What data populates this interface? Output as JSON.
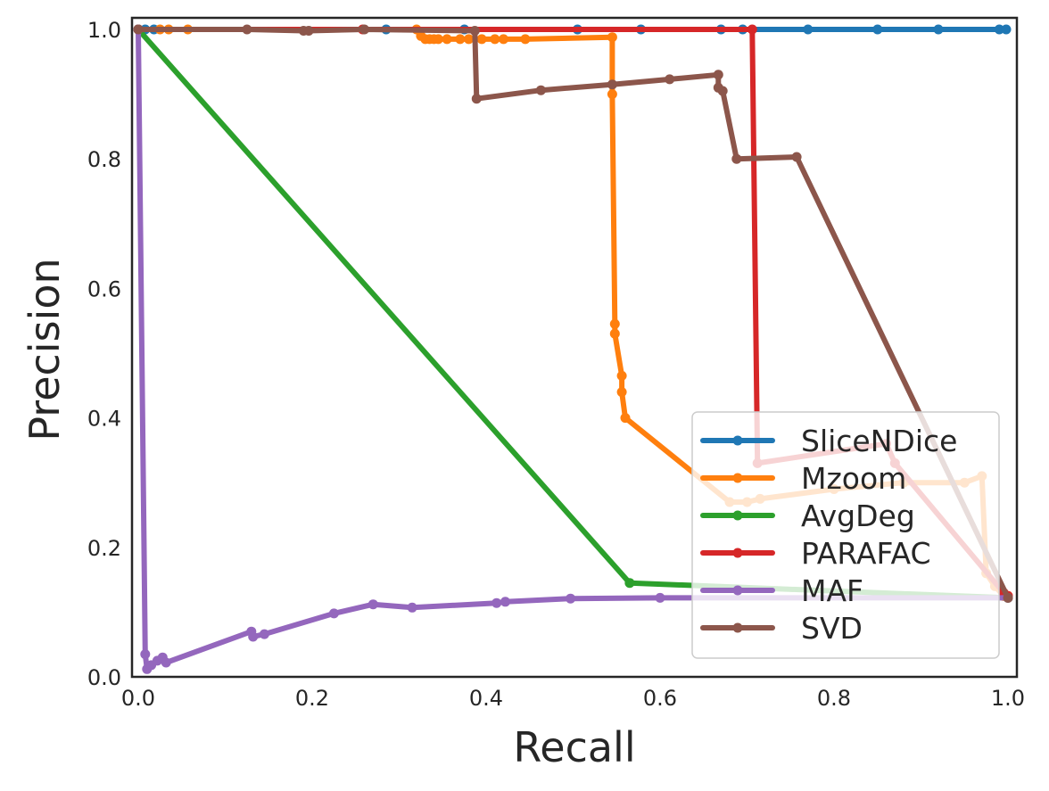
{
  "chart_data": {
    "type": "line",
    "title": "",
    "xlabel": "Recall",
    "ylabel": "Precision",
    "xlim": [
      0.0,
      1.0
    ],
    "ylim": [
      0.0,
      1.0
    ],
    "xticks": [
      "0.0",
      "0.2",
      "0.4",
      "0.6",
      "0.8",
      "1.0"
    ],
    "yticks": [
      "0.0",
      "0.2",
      "0.4",
      "0.6",
      "0.8",
      "1.0"
    ],
    "grid": false,
    "legend_position": "lower-right",
    "series": [
      {
        "name": "SliceNDice",
        "color": "#1f77b4",
        "points": [
          [
            0.0,
            1.0
          ],
          [
            0.008,
            1.0
          ],
          [
            0.018,
            1.0
          ],
          [
            0.285,
            1.0
          ],
          [
            0.375,
            1.0
          ],
          [
            0.505,
            1.0
          ],
          [
            0.578,
            1.0
          ],
          [
            0.67,
            1.0
          ],
          [
            0.695,
            1.0
          ],
          [
            0.77,
            1.0
          ],
          [
            0.85,
            1.0
          ],
          [
            0.92,
            1.0
          ],
          [
            0.99,
            1.0
          ],
          [
            0.998,
            1.0
          ]
        ]
      },
      {
        "name": "Mzoom",
        "color": "#ff7f0e",
        "points": [
          [
            0.0,
            1.0
          ],
          [
            0.025,
            1.0
          ],
          [
            0.035,
            1.0
          ],
          [
            0.057,
            1.0
          ],
          [
            0.32,
            1.0
          ],
          [
            0.325,
            0.99
          ],
          [
            0.33,
            0.985
          ],
          [
            0.335,
            0.985
          ],
          [
            0.34,
            0.985
          ],
          [
            0.345,
            0.985
          ],
          [
            0.355,
            0.985
          ],
          [
            0.37,
            0.985
          ],
          [
            0.38,
            0.985
          ],
          [
            0.395,
            0.985
          ],
          [
            0.41,
            0.985
          ],
          [
            0.42,
            0.985
          ],
          [
            0.445,
            0.985
          ],
          [
            0.545,
            0.988
          ],
          [
            0.545,
            0.9
          ],
          [
            0.548,
            0.545
          ],
          [
            0.548,
            0.53
          ],
          [
            0.556,
            0.465
          ],
          [
            0.556,
            0.44
          ],
          [
            0.56,
            0.4
          ],
          [
            0.68,
            0.27
          ],
          [
            0.7,
            0.27
          ],
          [
            0.715,
            0.275
          ],
          [
            0.8,
            0.29
          ],
          [
            0.88,
            0.3
          ],
          [
            0.95,
            0.3
          ],
          [
            0.97,
            0.31
          ],
          [
            0.975,
            0.16
          ],
          [
            0.985,
            0.14
          ],
          [
            0.995,
            0.125
          ],
          [
            1.0,
            0.125
          ]
        ]
      },
      {
        "name": "AvgDeg",
        "color": "#2ca02c",
        "points": [
          [
            0.0,
            1.0
          ],
          [
            0.565,
            0.145
          ],
          [
            1.0,
            0.122
          ]
        ]
      },
      {
        "name": "PARAFAC",
        "color": "#d62728",
        "points": [
          [
            0.0,
            1.0
          ],
          [
            0.258,
            1.0
          ],
          [
            0.706,
            1.0
          ],
          [
            0.712,
            0.33
          ],
          [
            0.86,
            0.36
          ],
          [
            0.87,
            0.33
          ],
          [
            0.995,
            0.13
          ],
          [
            1.0,
            0.125
          ]
        ]
      },
      {
        "name": "MAF",
        "color": "#9467bd",
        "points": [
          [
            0.0,
            1.0
          ],
          [
            0.008,
            0.035
          ],
          [
            0.01,
            0.012
          ],
          [
            0.015,
            0.018
          ],
          [
            0.022,
            0.025
          ],
          [
            0.028,
            0.03
          ],
          [
            0.032,
            0.022
          ],
          [
            0.13,
            0.07
          ],
          [
            0.132,
            0.062
          ],
          [
            0.145,
            0.066
          ],
          [
            0.225,
            0.098
          ],
          [
            0.27,
            0.112
          ],
          [
            0.315,
            0.107
          ],
          [
            0.412,
            0.114
          ],
          [
            0.422,
            0.116
          ],
          [
            0.497,
            0.121
          ],
          [
            0.6,
            0.122
          ],
          [
            1.0,
            0.122
          ]
        ]
      },
      {
        "name": "SVD",
        "color": "#8c564b",
        "points": [
          [
            0.0,
            1.0
          ],
          [
            0.125,
            1.0
          ],
          [
            0.19,
            0.998
          ],
          [
            0.196,
            0.998
          ],
          [
            0.26,
            1.0
          ],
          [
            0.387,
            0.998
          ],
          [
            0.389,
            0.893
          ],
          [
            0.463,
            0.906
          ],
          [
            0.545,
            0.915
          ],
          [
            0.611,
            0.923
          ],
          [
            0.667,
            0.93
          ],
          [
            0.667,
            0.91
          ],
          [
            0.672,
            0.905
          ],
          [
            0.688,
            0.8
          ],
          [
            0.757,
            0.803
          ],
          [
            1.0,
            0.122
          ]
        ]
      }
    ]
  }
}
